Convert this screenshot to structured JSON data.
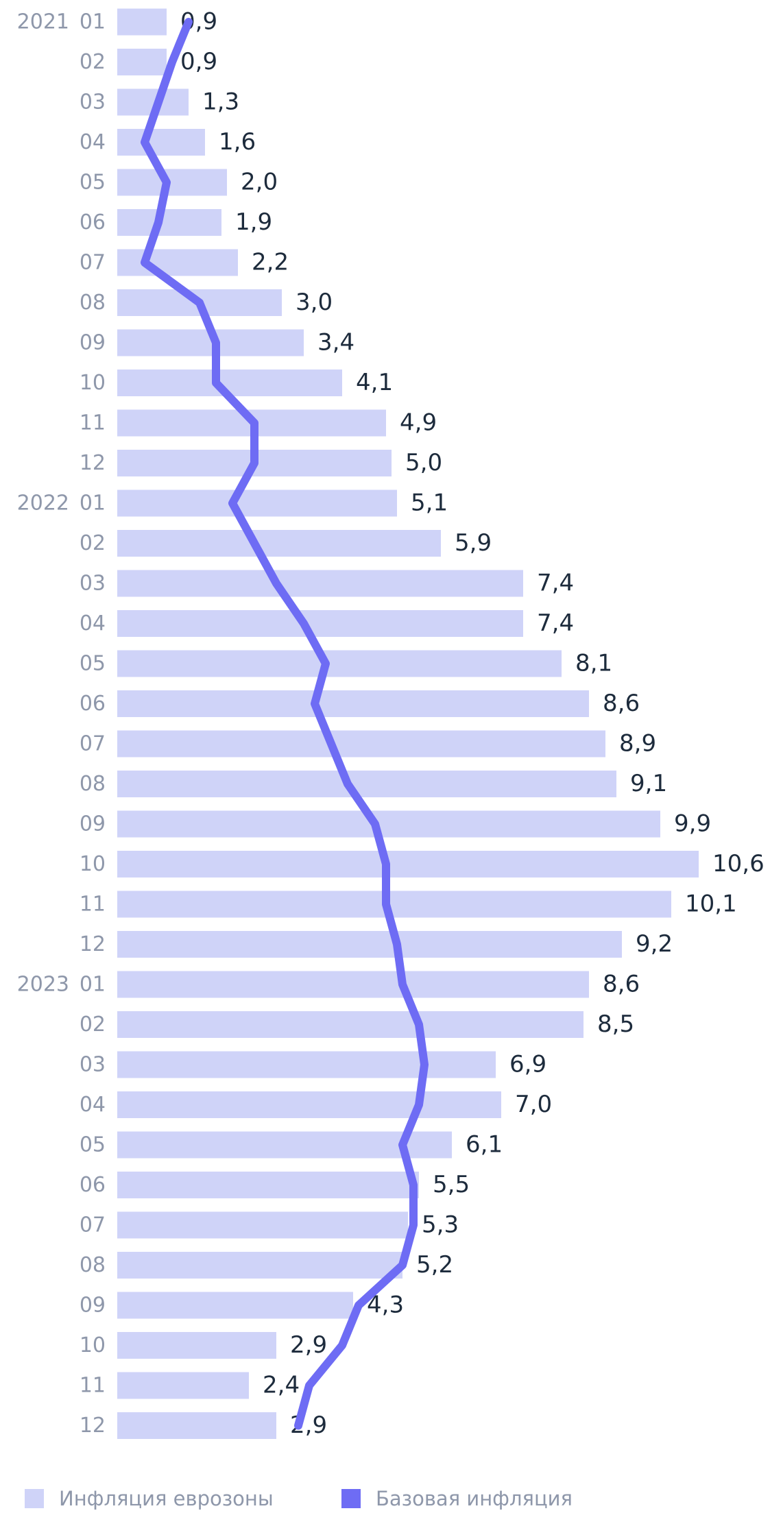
{
  "chart_data": {
    "type": "bar",
    "categories": [
      "01",
      "02",
      "03",
      "04",
      "05",
      "06",
      "07",
      "08",
      "09",
      "10",
      "11",
      "12",
      "01",
      "02",
      "03",
      "04",
      "05",
      "06",
      "07",
      "08",
      "09",
      "10",
      "11",
      "12",
      "01",
      "02",
      "03",
      "04",
      "05",
      "06",
      "07",
      "08",
      "09",
      "10",
      "11",
      "12"
    ],
    "year_labels": [
      "2021",
      null,
      null,
      null,
      null,
      null,
      null,
      null,
      null,
      null,
      null,
      null,
      "2022",
      null,
      null,
      null,
      null,
      null,
      null,
      null,
      null,
      null,
      null,
      null,
      "2023",
      null,
      null,
      null,
      null,
      null,
      null,
      null,
      null,
      null,
      null,
      null
    ],
    "orientation": "horizontal",
    "xlim": [
      0,
      11.9
    ],
    "series": [
      {
        "name": "Инфляция еврозоны",
        "type": "bar",
        "color": "#cfd3f8",
        "values": [
          0.9,
          0.9,
          1.3,
          1.6,
          2.0,
          1.9,
          2.2,
          3.0,
          3.4,
          4.1,
          4.9,
          5.0,
          5.1,
          5.9,
          7.4,
          7.4,
          8.1,
          8.6,
          8.9,
          9.1,
          9.9,
          10.6,
          10.1,
          9.2,
          8.6,
          8.5,
          6.9,
          7.0,
          6.1,
          5.5,
          5.3,
          5.2,
          4.3,
          2.9,
          2.4,
          2.9
        ],
        "value_labels": [
          "0,9",
          "0,9",
          "1,3",
          "1,6",
          "2,0",
          "1,9",
          "2,2",
          "3,0",
          "3,4",
          "4,1",
          "4,9",
          "5,0",
          "5,1",
          "5,9",
          "7,4",
          "7,4",
          "8,1",
          "8,6",
          "8,9",
          "9,1",
          "9,9",
          "10,6",
          "10,1",
          "9,2",
          "8,6",
          "8,5",
          "6,9",
          "7,0",
          "6,1",
          "5,5",
          "5,3",
          "5,2",
          "4,3",
          "2,9",
          "2,4",
          "2,9"
        ]
      },
      {
        "name": "Базовая инфляция",
        "type": "line",
        "color": "#6e6cf4",
        "values": [
          1.3,
          1.0,
          0.75,
          0.5,
          0.9,
          0.75,
          0.5,
          1.5,
          1.8,
          1.8,
          2.5,
          2.5,
          2.1,
          2.5,
          2.9,
          3.4,
          3.8,
          3.6,
          3.9,
          4.2,
          4.7,
          4.9,
          4.9,
          5.1,
          5.2,
          5.5,
          5.6,
          5.5,
          5.2,
          5.4,
          5.4,
          5.2,
          4.4,
          4.1,
          3.5,
          3.3
        ]
      }
    ]
  }
}
